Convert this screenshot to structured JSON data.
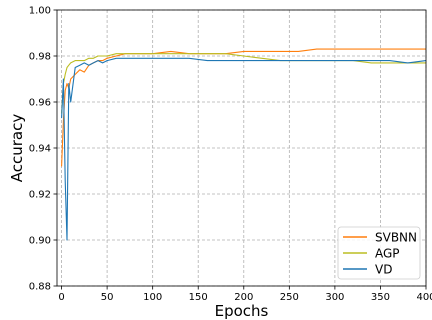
{
  "chart_data": {
    "type": "line",
    "xlabel": "Epochs",
    "ylabel": "Accuracy",
    "xlim": [
      -5,
      400
    ],
    "ylim": [
      0.88,
      1.0
    ],
    "xticks": [
      0,
      50,
      100,
      150,
      200,
      250,
      300,
      350,
      400
    ],
    "yticks": [
      0.88,
      0.9,
      0.92,
      0.94,
      0.96,
      0.98,
      1.0
    ],
    "xtick_labels": [
      "0",
      "50",
      "100",
      "150",
      "200",
      "250",
      "300",
      "350",
      "400"
    ],
    "ytick_labels": [
      "0.88",
      "0.90",
      "0.92",
      "0.94",
      "0.96",
      "0.98",
      "1.00"
    ],
    "grid": true,
    "legend_position": "lower-right",
    "x": [
      0,
      2,
      4,
      6,
      8,
      10,
      15,
      20,
      25,
      30,
      35,
      40,
      45,
      50,
      60,
      70,
      80,
      90,
      100,
      120,
      140,
      160,
      180,
      200,
      220,
      240,
      260,
      280,
      300,
      320,
      340,
      360,
      380,
      400
    ],
    "series": [
      {
        "name": "SVBNN",
        "color": "#ff7f0e",
        "values": [
          0.932,
          0.952,
          0.965,
          0.968,
          0.966,
          0.97,
          0.972,
          0.974,
          0.973,
          0.976,
          0.977,
          0.978,
          0.978,
          0.979,
          0.98,
          0.981,
          0.981,
          0.981,
          0.981,
          0.982,
          0.981,
          0.981,
          0.981,
          0.982,
          0.982,
          0.982,
          0.982,
          0.983,
          0.983,
          0.983,
          0.983,
          0.983,
          0.983,
          0.983
        ]
      },
      {
        "name": "AGP",
        "color": "#bcbd22",
        "values": [
          0.955,
          0.968,
          0.972,
          0.975,
          0.976,
          0.977,
          0.978,
          0.978,
          0.978,
          0.979,
          0.979,
          0.98,
          0.98,
          0.98,
          0.981,
          0.981,
          0.981,
          0.981,
          0.981,
          0.981,
          0.981,
          0.981,
          0.981,
          0.98,
          0.979,
          0.978,
          0.978,
          0.978,
          0.978,
          0.978,
          0.977,
          0.977,
          0.977,
          0.977
        ]
      },
      {
        "name": "VD",
        "color": "#1f77b4",
        "values": [
          0.953,
          0.97,
          0.926,
          0.9,
          0.968,
          0.96,
          0.975,
          0.976,
          0.977,
          0.976,
          0.977,
          0.978,
          0.977,
          0.978,
          0.979,
          0.979,
          0.979,
          0.979,
          0.979,
          0.979,
          0.979,
          0.978,
          0.978,
          0.978,
          0.978,
          0.978,
          0.978,
          0.978,
          0.978,
          0.978,
          0.978,
          0.978,
          0.977,
          0.978
        ]
      }
    ]
  }
}
